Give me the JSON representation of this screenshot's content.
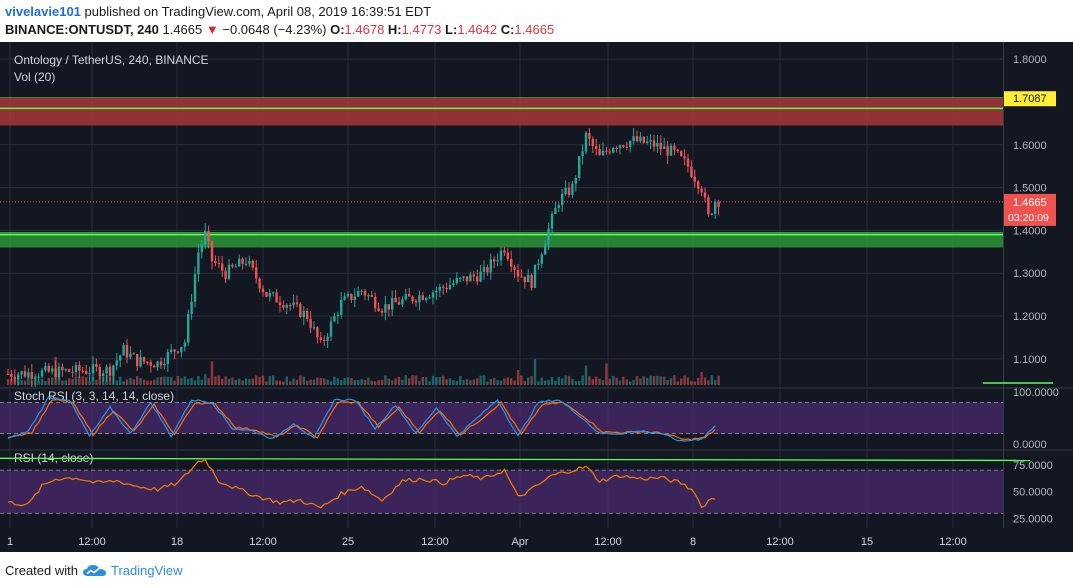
{
  "header": {
    "author": "vivelavie101",
    "published_text": "published on TradingView.com, April 08, 2019 16:39:51 EDT",
    "symbol": "BINANCE:ONTUSDT, 240",
    "last": "1.4665",
    "change": "−0.0648 (−4.23%)",
    "o_label": "O:",
    "o": "1.4678",
    "h_label": "H:",
    "h": "1.4773",
    "l_label": "L:",
    "l": "1.4642",
    "c_label": "C:",
    "c": "1.4665"
  },
  "footer": {
    "created_with": "Created with",
    "brand": "TradingView",
    "logo_icon": "tradingview-cloud-icon"
  },
  "colors": {
    "background": "#131722",
    "up": "#26a69a",
    "down": "#ef5350",
    "resistance_zone": "#b2393c",
    "support_zone": "#2e9e3a",
    "zone_line": "#59ff4f",
    "stoch_k": "#2196f3",
    "stoch_d": "#ff6d00",
    "rsi_line": "#f57c00",
    "band_fill": "#4a2a6e",
    "price_badge": "#ef5350",
    "level_badge": "#ffee33"
  },
  "chart_data": {
    "type": "candlestick",
    "title": "Ontology / TetherUS, 240, BINANCE",
    "volume_label": "Vol (20)",
    "price_axis": {
      "range": [
        1.04,
        1.84
      ],
      "ticks": [
        "1.8000",
        "1.7000",
        "1.6000",
        "1.5000",
        "1.4000",
        "1.3000",
        "1.2000",
        "1.1000"
      ]
    },
    "x_ticks": [
      "1",
      "12:00",
      "18",
      "12:00",
      "25",
      "12:00",
      "Apr",
      "12:00",
      "8",
      "12:00",
      "15",
      "12:00"
    ],
    "current_price": "1.4665",
    "countdown": "03:20:09",
    "level_label": "1.7087",
    "zones": [
      {
        "name": "resistance",
        "low": 1.645,
        "high": 1.71,
        "line": 1.685
      },
      {
        "name": "support",
        "low": 1.36,
        "high": 1.395,
        "line": 1.39
      }
    ],
    "anchors": [
      [
        0,
        1.065
      ],
      [
        10,
        1.068
      ],
      [
        20,
        1.072
      ],
      [
        30,
        1.075
      ],
      [
        34,
        1.12
      ],
      [
        38,
        1.095
      ],
      [
        44,
        1.09
      ],
      [
        52,
        1.14
      ],
      [
        56,
        1.35
      ],
      [
        58,
        1.39
      ],
      [
        60,
        1.33
      ],
      [
        64,
        1.3
      ],
      [
        70,
        1.33
      ],
      [
        76,
        1.25
      ],
      [
        82,
        1.23
      ],
      [
        88,
        1.2
      ],
      [
        92,
        1.13
      ],
      [
        98,
        1.23
      ],
      [
        104,
        1.26
      ],
      [
        110,
        1.22
      ],
      [
        118,
        1.24
      ],
      [
        126,
        1.26
      ],
      [
        132,
        1.28
      ],
      [
        140,
        1.3
      ],
      [
        146,
        1.36
      ],
      [
        150,
        1.3
      ],
      [
        154,
        1.28
      ],
      [
        158,
        1.38
      ],
      [
        162,
        1.47
      ],
      [
        166,
        1.5
      ],
      [
        170,
        1.62
      ],
      [
        174,
        1.57
      ],
      [
        178,
        1.6
      ],
      [
        184,
        1.61
      ],
      [
        190,
        1.6
      ],
      [
        196,
        1.58
      ],
      [
        200,
        1.55
      ],
      [
        204,
        1.5
      ],
      [
        206,
        1.43
      ],
      [
        208,
        1.47
      ]
    ],
    "volume_spikes": [
      [
        14,
        0.65
      ],
      [
        58,
        0.25
      ],
      [
        60,
        0.55
      ],
      [
        150,
        0.35
      ],
      [
        155,
        0.6
      ],
      [
        170,
        0.45
      ],
      [
        176,
        0.5
      ],
      [
        204,
        0.3
      ]
    ],
    "stoch_rsi": {
      "label": "Stoch RSI (3, 3, 14, 14, close)",
      "ticks": [
        "100.0000",
        "0.0000"
      ],
      "range": [
        0,
        100
      ],
      "bands": [
        20,
        80
      ],
      "k_anchors": [
        [
          0,
          10
        ],
        [
          6,
          25
        ],
        [
          12,
          90
        ],
        [
          18,
          85
        ],
        [
          24,
          15
        ],
        [
          30,
          70
        ],
        [
          36,
          20
        ],
        [
          42,
          80
        ],
        [
          48,
          15
        ],
        [
          54,
          85
        ],
        [
          60,
          80
        ],
        [
          66,
          30
        ],
        [
          72,
          25
        ],
        [
          78,
          10
        ],
        [
          84,
          40
        ],
        [
          90,
          10
        ],
        [
          96,
          85
        ],
        [
          102,
          85
        ],
        [
          108,
          30
        ],
        [
          114,
          75
        ],
        [
          120,
          20
        ],
        [
          126,
          70
        ],
        [
          132,
          15
        ],
        [
          138,
          50
        ],
        [
          144,
          85
        ],
        [
          150,
          15
        ],
        [
          156,
          80
        ],
        [
          162,
          85
        ],
        [
          168,
          55
        ],
        [
          174,
          20
        ],
        [
          180,
          20
        ],
        [
          186,
          25
        ],
        [
          192,
          20
        ],
        [
          198,
          5
        ],
        [
          204,
          10
        ],
        [
          208,
          35
        ]
      ],
      "d_anchors": [
        [
          0,
          14
        ],
        [
          7,
          22
        ],
        [
          13,
          85
        ],
        [
          19,
          80
        ],
        [
          25,
          18
        ],
        [
          31,
          65
        ],
        [
          37,
          24
        ],
        [
          43,
          75
        ],
        [
          49,
          18
        ],
        [
          55,
          80
        ],
        [
          61,
          76
        ],
        [
          67,
          32
        ],
        [
          73,
          27
        ],
        [
          79,
          13
        ],
        [
          85,
          36
        ],
        [
          91,
          13
        ],
        [
          97,
          80
        ],
        [
          103,
          80
        ],
        [
          109,
          33
        ],
        [
          115,
          70
        ],
        [
          121,
          23
        ],
        [
          127,
          65
        ],
        [
          133,
          18
        ],
        [
          139,
          47
        ],
        [
          145,
          80
        ],
        [
          151,
          18
        ],
        [
          157,
          75
        ],
        [
          163,
          80
        ],
        [
          169,
          55
        ],
        [
          175,
          23
        ],
        [
          181,
          22
        ],
        [
          187,
          24
        ],
        [
          193,
          20
        ],
        [
          199,
          8
        ],
        [
          205,
          12
        ],
        [
          208,
          28
        ]
      ]
    },
    "rsi": {
      "label": "RSI (14, close)",
      "ticks": [
        "75.0000",
        "50.0000",
        "25.0000"
      ],
      "range": [
        20,
        85
      ],
      "bands": [
        30,
        70
      ],
      "trend_line": [
        [
          0,
          81
        ],
        [
          245,
          79
        ]
      ],
      "anchors": [
        [
          0,
          40
        ],
        [
          6,
          38
        ],
        [
          10,
          55
        ],
        [
          14,
          62
        ],
        [
          20,
          63
        ],
        [
          26,
          58
        ],
        [
          32,
          60
        ],
        [
          38,
          55
        ],
        [
          44,
          52
        ],
        [
          50,
          58
        ],
        [
          56,
          78
        ],
        [
          58,
          80
        ],
        [
          62,
          60
        ],
        [
          68,
          52
        ],
        [
          74,
          45
        ],
        [
          80,
          40
        ],
        [
          86,
          42
        ],
        [
          92,
          35
        ],
        [
          98,
          48
        ],
        [
          104,
          55
        ],
        [
          110,
          42
        ],
        [
          116,
          60
        ],
        [
          122,
          62
        ],
        [
          128,
          58
        ],
        [
          134,
          65
        ],
        [
          140,
          62
        ],
        [
          146,
          70
        ],
        [
          150,
          45
        ],
        [
          154,
          52
        ],
        [
          160,
          65
        ],
        [
          166,
          70
        ],
        [
          170,
          73
        ],
        [
          174,
          60
        ],
        [
          180,
          65
        ],
        [
          186,
          62
        ],
        [
          192,
          63
        ],
        [
          198,
          58
        ],
        [
          202,
          50
        ],
        [
          204,
          35
        ],
        [
          206,
          42
        ],
        [
          208,
          44
        ]
      ]
    }
  }
}
